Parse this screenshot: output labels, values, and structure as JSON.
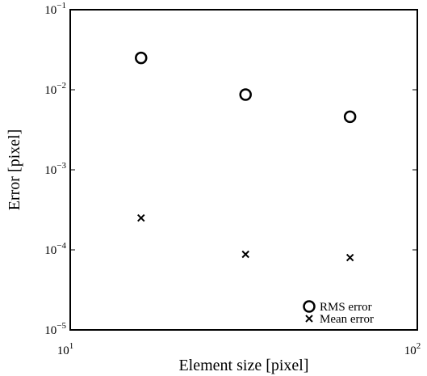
{
  "chart_data": {
    "type": "scatter",
    "xlabel": "Element size [pixel]",
    "ylabel": "Error [pixel]",
    "xscale": "log",
    "yscale": "log",
    "xlim": [
      10,
      100
    ],
    "ylim": [
      1e-05,
      0.1
    ],
    "xticks": [
      {
        "value": 10,
        "label": "10",
        "exponent": "1"
      },
      {
        "value": 100,
        "label": "10",
        "exponent": "2"
      }
    ],
    "yticks": [
      {
        "value": 1e-05,
        "label": "10",
        "exponent": "−5"
      },
      {
        "value": 0.0001,
        "label": "10",
        "exponent": "−4"
      },
      {
        "value": 0.001,
        "label": "10",
        "exponent": "−3"
      },
      {
        "value": 0.01,
        "label": "10",
        "exponent": "−2"
      },
      {
        "value": 0.1,
        "label": "10",
        "exponent": "−1"
      }
    ],
    "grid": false,
    "legend": "lower right",
    "series": [
      {
        "name": "RMS error",
        "marker": "circle",
        "color": "#000000",
        "x": [
          16,
          32,
          64
        ],
        "values": [
          0.025,
          0.0087,
          0.0046
        ]
      },
      {
        "name": "Mean error",
        "marker": "x",
        "color": "#000000",
        "x": [
          16,
          32,
          64
        ],
        "values": [
          0.00025,
          8.8e-05,
          8e-05
        ]
      }
    ]
  }
}
